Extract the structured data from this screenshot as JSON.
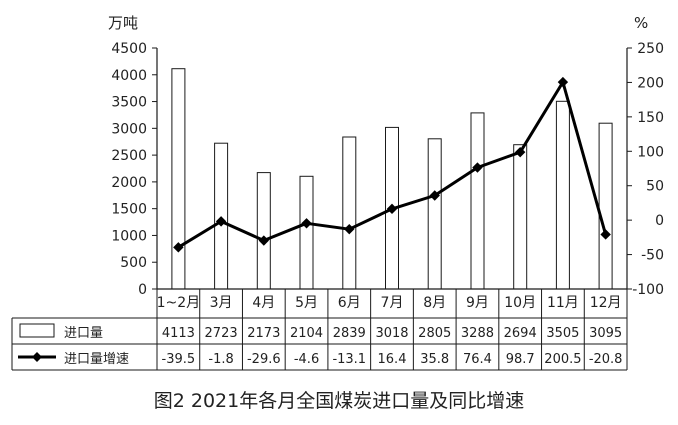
{
  "chart_data": {
    "type": "bar+line",
    "title": "图2 2021年各月全国煤炭进口量及同比增速",
    "categories": [
      "1~2月",
      "3月",
      "4月",
      "5月",
      "6月",
      "7月",
      "8月",
      "9月",
      "10月",
      "11月",
      "12月"
    ],
    "series": [
      {
        "name": "进口量",
        "type": "bar",
        "axis": "left",
        "values": [
          4113,
          2723,
          2173,
          2104,
          2839,
          3018,
          2805,
          3288,
          2694,
          3505,
          3095
        ]
      },
      {
        "name": "进口量增速",
        "type": "line",
        "axis": "right",
        "values": [
          -39.5,
          -1.8,
          -29.6,
          -4.6,
          -13.1,
          16.4,
          35.8,
          76.4,
          98.7,
          200.5,
          -20.8
        ]
      }
    ],
    "y_left": {
      "unit": "万吨",
      "range": [
        0,
        4500
      ],
      "ticks": [
        0,
        500,
        1000,
        1500,
        2000,
        2500,
        3000,
        3500,
        4000,
        4500
      ]
    },
    "y_right": {
      "unit": "%",
      "range": [
        -100,
        250
      ],
      "ticks": [
        -100,
        -50,
        0,
        50,
        100,
        150,
        200,
        250
      ]
    },
    "grid": false,
    "legend": "data-table-below"
  }
}
